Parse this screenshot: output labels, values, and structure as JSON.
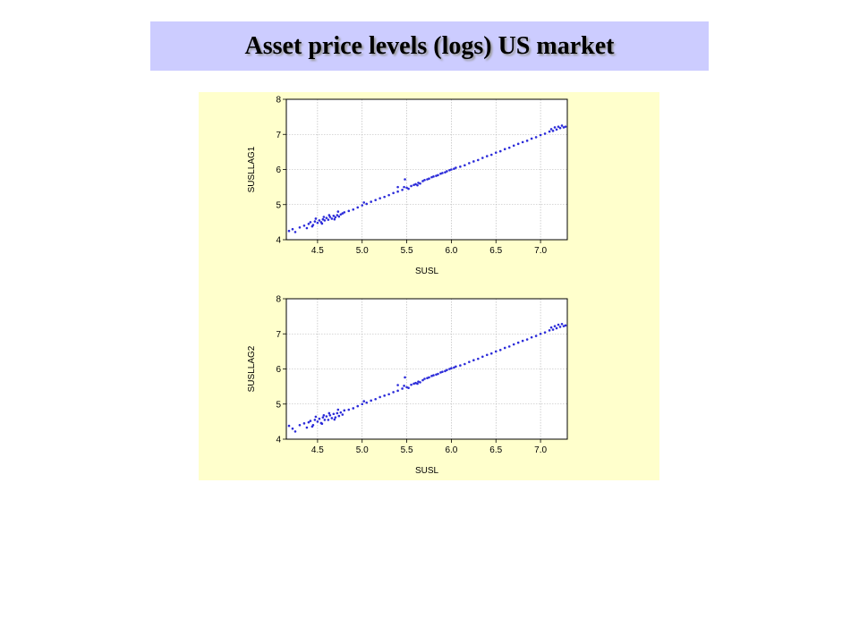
{
  "slide": {
    "title": "Asset price levels (logs) US market",
    "banner_color": "#ccccff",
    "panel_color": "#ffffcc"
  },
  "chart_data": [
    {
      "type": "scatter",
      "title": "",
      "xlabel": "SUSL",
      "ylabel": "SUSLLAG1",
      "xlim": [
        4.15,
        7.3
      ],
      "ylim": [
        4.0,
        8.0
      ],
      "xticks": [
        "4.5",
        "5.0",
        "5.5",
        "6.0",
        "6.5",
        "7.0"
      ],
      "yticks": [
        "4",
        "5",
        "6",
        "7",
        "8"
      ],
      "grid": true,
      "marker_color": "#2b2bd9",
      "points": [
        [
          4.18,
          4.25
        ],
        [
          4.22,
          4.3
        ],
        [
          4.25,
          4.22
        ],
        [
          4.3,
          4.35
        ],
        [
          4.35,
          4.4
        ],
        [
          4.38,
          4.33
        ],
        [
          4.4,
          4.45
        ],
        [
          4.42,
          4.5
        ],
        [
          4.45,
          4.42
        ],
        [
          4.47,
          4.52
        ],
        [
          4.5,
          4.48
        ],
        [
          4.52,
          4.55
        ],
        [
          4.54,
          4.5
        ],
        [
          4.56,
          4.58
        ],
        [
          4.58,
          4.55
        ],
        [
          4.6,
          4.62
        ],
        [
          4.62,
          4.57
        ],
        [
          4.64,
          4.65
        ],
        [
          4.66,
          4.6
        ],
        [
          4.68,
          4.68
        ],
        [
          4.7,
          4.64
        ],
        [
          4.72,
          4.7
        ],
        [
          4.74,
          4.66
        ],
        [
          4.76,
          4.72
        ],
        [
          4.78,
          4.75
        ],
        [
          4.8,
          4.78
        ],
        [
          4.48,
          4.6
        ],
        [
          4.55,
          4.46
        ],
        [
          4.63,
          4.7
        ],
        [
          4.69,
          4.58
        ],
        [
          4.85,
          4.82
        ],
        [
          4.9,
          4.86
        ],
        [
          4.95,
          4.92
        ],
        [
          5.0,
          4.98
        ],
        [
          5.05,
          5.02
        ],
        [
          5.1,
          5.08
        ],
        [
          5.15,
          5.13
        ],
        [
          5.2,
          5.18
        ],
        [
          5.25,
          5.22
        ],
        [
          5.3,
          5.27
        ],
        [
          5.35,
          5.33
        ],
        [
          5.4,
          5.37
        ],
        [
          5.45,
          5.42
        ],
        [
          5.47,
          5.5
        ],
        [
          5.5,
          5.48
        ],
        [
          5.52,
          5.45
        ],
        [
          5.55,
          5.53
        ],
        [
          5.58,
          5.56
        ],
        [
          5.6,
          5.58
        ],
        [
          5.63,
          5.62
        ],
        [
          5.65,
          5.6
        ],
        [
          5.68,
          5.67
        ],
        [
          5.7,
          5.7
        ],
        [
          5.73,
          5.72
        ],
        [
          5.75,
          5.74
        ],
        [
          5.78,
          5.78
        ],
        [
          5.8,
          5.8
        ],
        [
          5.83,
          5.82
        ],
        [
          5.85,
          5.84
        ],
        [
          5.88,
          5.88
        ],
        [
          5.9,
          5.9
        ],
        [
          5.93,
          5.92
        ],
        [
          5.95,
          5.95
        ],
        [
          5.98,
          5.98
        ],
        [
          6.0,
          6.0
        ],
        [
          6.03,
          6.02
        ],
        [
          6.05,
          6.05
        ],
        [
          6.1,
          6.08
        ],
        [
          6.15,
          6.12
        ],
        [
          6.2,
          6.18
        ],
        [
          6.25,
          6.23
        ],
        [
          6.3,
          6.27
        ],
        [
          6.35,
          6.33
        ],
        [
          6.4,
          6.38
        ],
        [
          6.45,
          6.42
        ],
        [
          6.5,
          6.48
        ],
        [
          6.55,
          6.52
        ],
        [
          6.6,
          6.58
        ],
        [
          6.65,
          6.62
        ],
        [
          6.7,
          6.68
        ],
        [
          6.75,
          6.73
        ],
        [
          6.8,
          6.78
        ],
        [
          6.85,
          6.82
        ],
        [
          6.9,
          6.88
        ],
        [
          6.95,
          6.92
        ],
        [
          7.0,
          6.98
        ],
        [
          7.05,
          7.02
        ],
        [
          7.1,
          7.08
        ],
        [
          7.12,
          7.15
        ],
        [
          7.14,
          7.1
        ],
        [
          7.16,
          7.2
        ],
        [
          7.18,
          7.14
        ],
        [
          7.2,
          7.22
        ],
        [
          7.22,
          7.18
        ],
        [
          7.24,
          7.25
        ],
        [
          7.26,
          7.2
        ],
        [
          7.28,
          7.22
        ],
        [
          5.48,
          5.72
        ],
        [
          5.4,
          5.5
        ],
        [
          5.62,
          5.55
        ],
        [
          4.44,
          4.38
        ],
        [
          4.57,
          4.65
        ],
        [
          4.73,
          4.8
        ],
        [
          5.02,
          5.06
        ]
      ]
    },
    {
      "type": "scatter",
      "title": "",
      "xlabel": "SUSL",
      "ylabel": "SUSLLAG2",
      "xlim": [
        4.15,
        7.3
      ],
      "ylim": [
        4.0,
        8.0
      ],
      "xticks": [
        "4.5",
        "5.0",
        "5.5",
        "6.0",
        "6.5",
        "7.0"
      ],
      "yticks": [
        "4",
        "5",
        "6",
        "7",
        "8"
      ],
      "grid": true,
      "marker_color": "#2b2bd9",
      "points": [
        [
          4.18,
          4.38
        ],
        [
          4.22,
          4.3
        ],
        [
          4.25,
          4.22
        ],
        [
          4.3,
          4.4
        ],
        [
          4.35,
          4.45
        ],
        [
          4.38,
          4.33
        ],
        [
          4.4,
          4.48
        ],
        [
          4.42,
          4.52
        ],
        [
          4.45,
          4.4
        ],
        [
          4.47,
          4.55
        ],
        [
          4.5,
          4.5
        ],
        [
          4.52,
          4.58
        ],
        [
          4.54,
          4.46
        ],
        [
          4.56,
          4.62
        ],
        [
          4.58,
          4.55
        ],
        [
          4.6,
          4.65
        ],
        [
          4.62,
          4.55
        ],
        [
          4.64,
          4.68
        ],
        [
          4.66,
          4.6
        ],
        [
          4.68,
          4.72
        ],
        [
          4.7,
          4.62
        ],
        [
          4.72,
          4.74
        ],
        [
          4.74,
          4.66
        ],
        [
          4.76,
          4.76
        ],
        [
          4.78,
          4.7
        ],
        [
          4.8,
          4.82
        ],
        [
          4.48,
          4.64
        ],
        [
          4.55,
          4.44
        ],
        [
          4.63,
          4.74
        ],
        [
          4.69,
          4.56
        ],
        [
          4.85,
          4.84
        ],
        [
          4.9,
          4.88
        ],
        [
          4.95,
          4.94
        ],
        [
          5.0,
          5.0
        ],
        [
          5.05,
          5.04
        ],
        [
          5.1,
          5.1
        ],
        [
          5.15,
          5.14
        ],
        [
          5.2,
          5.2
        ],
        [
          5.25,
          5.24
        ],
        [
          5.3,
          5.28
        ],
        [
          5.35,
          5.34
        ],
        [
          5.4,
          5.38
        ],
        [
          5.45,
          5.44
        ],
        [
          5.47,
          5.52
        ],
        [
          5.5,
          5.48
        ],
        [
          5.52,
          5.46
        ],
        [
          5.55,
          5.55
        ],
        [
          5.58,
          5.58
        ],
        [
          5.6,
          5.6
        ],
        [
          5.63,
          5.64
        ],
        [
          5.65,
          5.62
        ],
        [
          5.68,
          5.68
        ],
        [
          5.7,
          5.72
        ],
        [
          5.73,
          5.74
        ],
        [
          5.75,
          5.76
        ],
        [
          5.78,
          5.8
        ],
        [
          5.8,
          5.82
        ],
        [
          5.83,
          5.84
        ],
        [
          5.85,
          5.86
        ],
        [
          5.88,
          5.9
        ],
        [
          5.9,
          5.92
        ],
        [
          5.93,
          5.94
        ],
        [
          5.95,
          5.97
        ],
        [
          5.98,
          6.0
        ],
        [
          6.0,
          6.02
        ],
        [
          6.03,
          6.04
        ],
        [
          6.05,
          6.07
        ],
        [
          6.1,
          6.1
        ],
        [
          6.15,
          6.14
        ],
        [
          6.2,
          6.2
        ],
        [
          6.25,
          6.25
        ],
        [
          6.3,
          6.29
        ],
        [
          6.35,
          6.35
        ],
        [
          6.4,
          6.4
        ],
        [
          6.45,
          6.44
        ],
        [
          6.5,
          6.5
        ],
        [
          6.55,
          6.54
        ],
        [
          6.6,
          6.6
        ],
        [
          6.65,
          6.64
        ],
        [
          6.7,
          6.7
        ],
        [
          6.75,
          6.75
        ],
        [
          6.8,
          6.8
        ],
        [
          6.85,
          6.84
        ],
        [
          6.9,
          6.9
        ],
        [
          6.95,
          6.94
        ],
        [
          7.0,
          7.0
        ],
        [
          7.05,
          7.04
        ],
        [
          7.1,
          7.1
        ],
        [
          7.12,
          7.18
        ],
        [
          7.14,
          7.12
        ],
        [
          7.16,
          7.22
        ],
        [
          7.18,
          7.16
        ],
        [
          7.2,
          7.26
        ],
        [
          7.22,
          7.2
        ],
        [
          7.24,
          7.28
        ],
        [
          7.26,
          7.22
        ],
        [
          7.28,
          7.24
        ],
        [
          5.48,
          5.76
        ],
        [
          5.4,
          5.54
        ],
        [
          5.62,
          5.58
        ],
        [
          4.44,
          4.36
        ],
        [
          4.57,
          4.68
        ],
        [
          4.73,
          4.84
        ],
        [
          5.02,
          5.08
        ]
      ]
    }
  ]
}
